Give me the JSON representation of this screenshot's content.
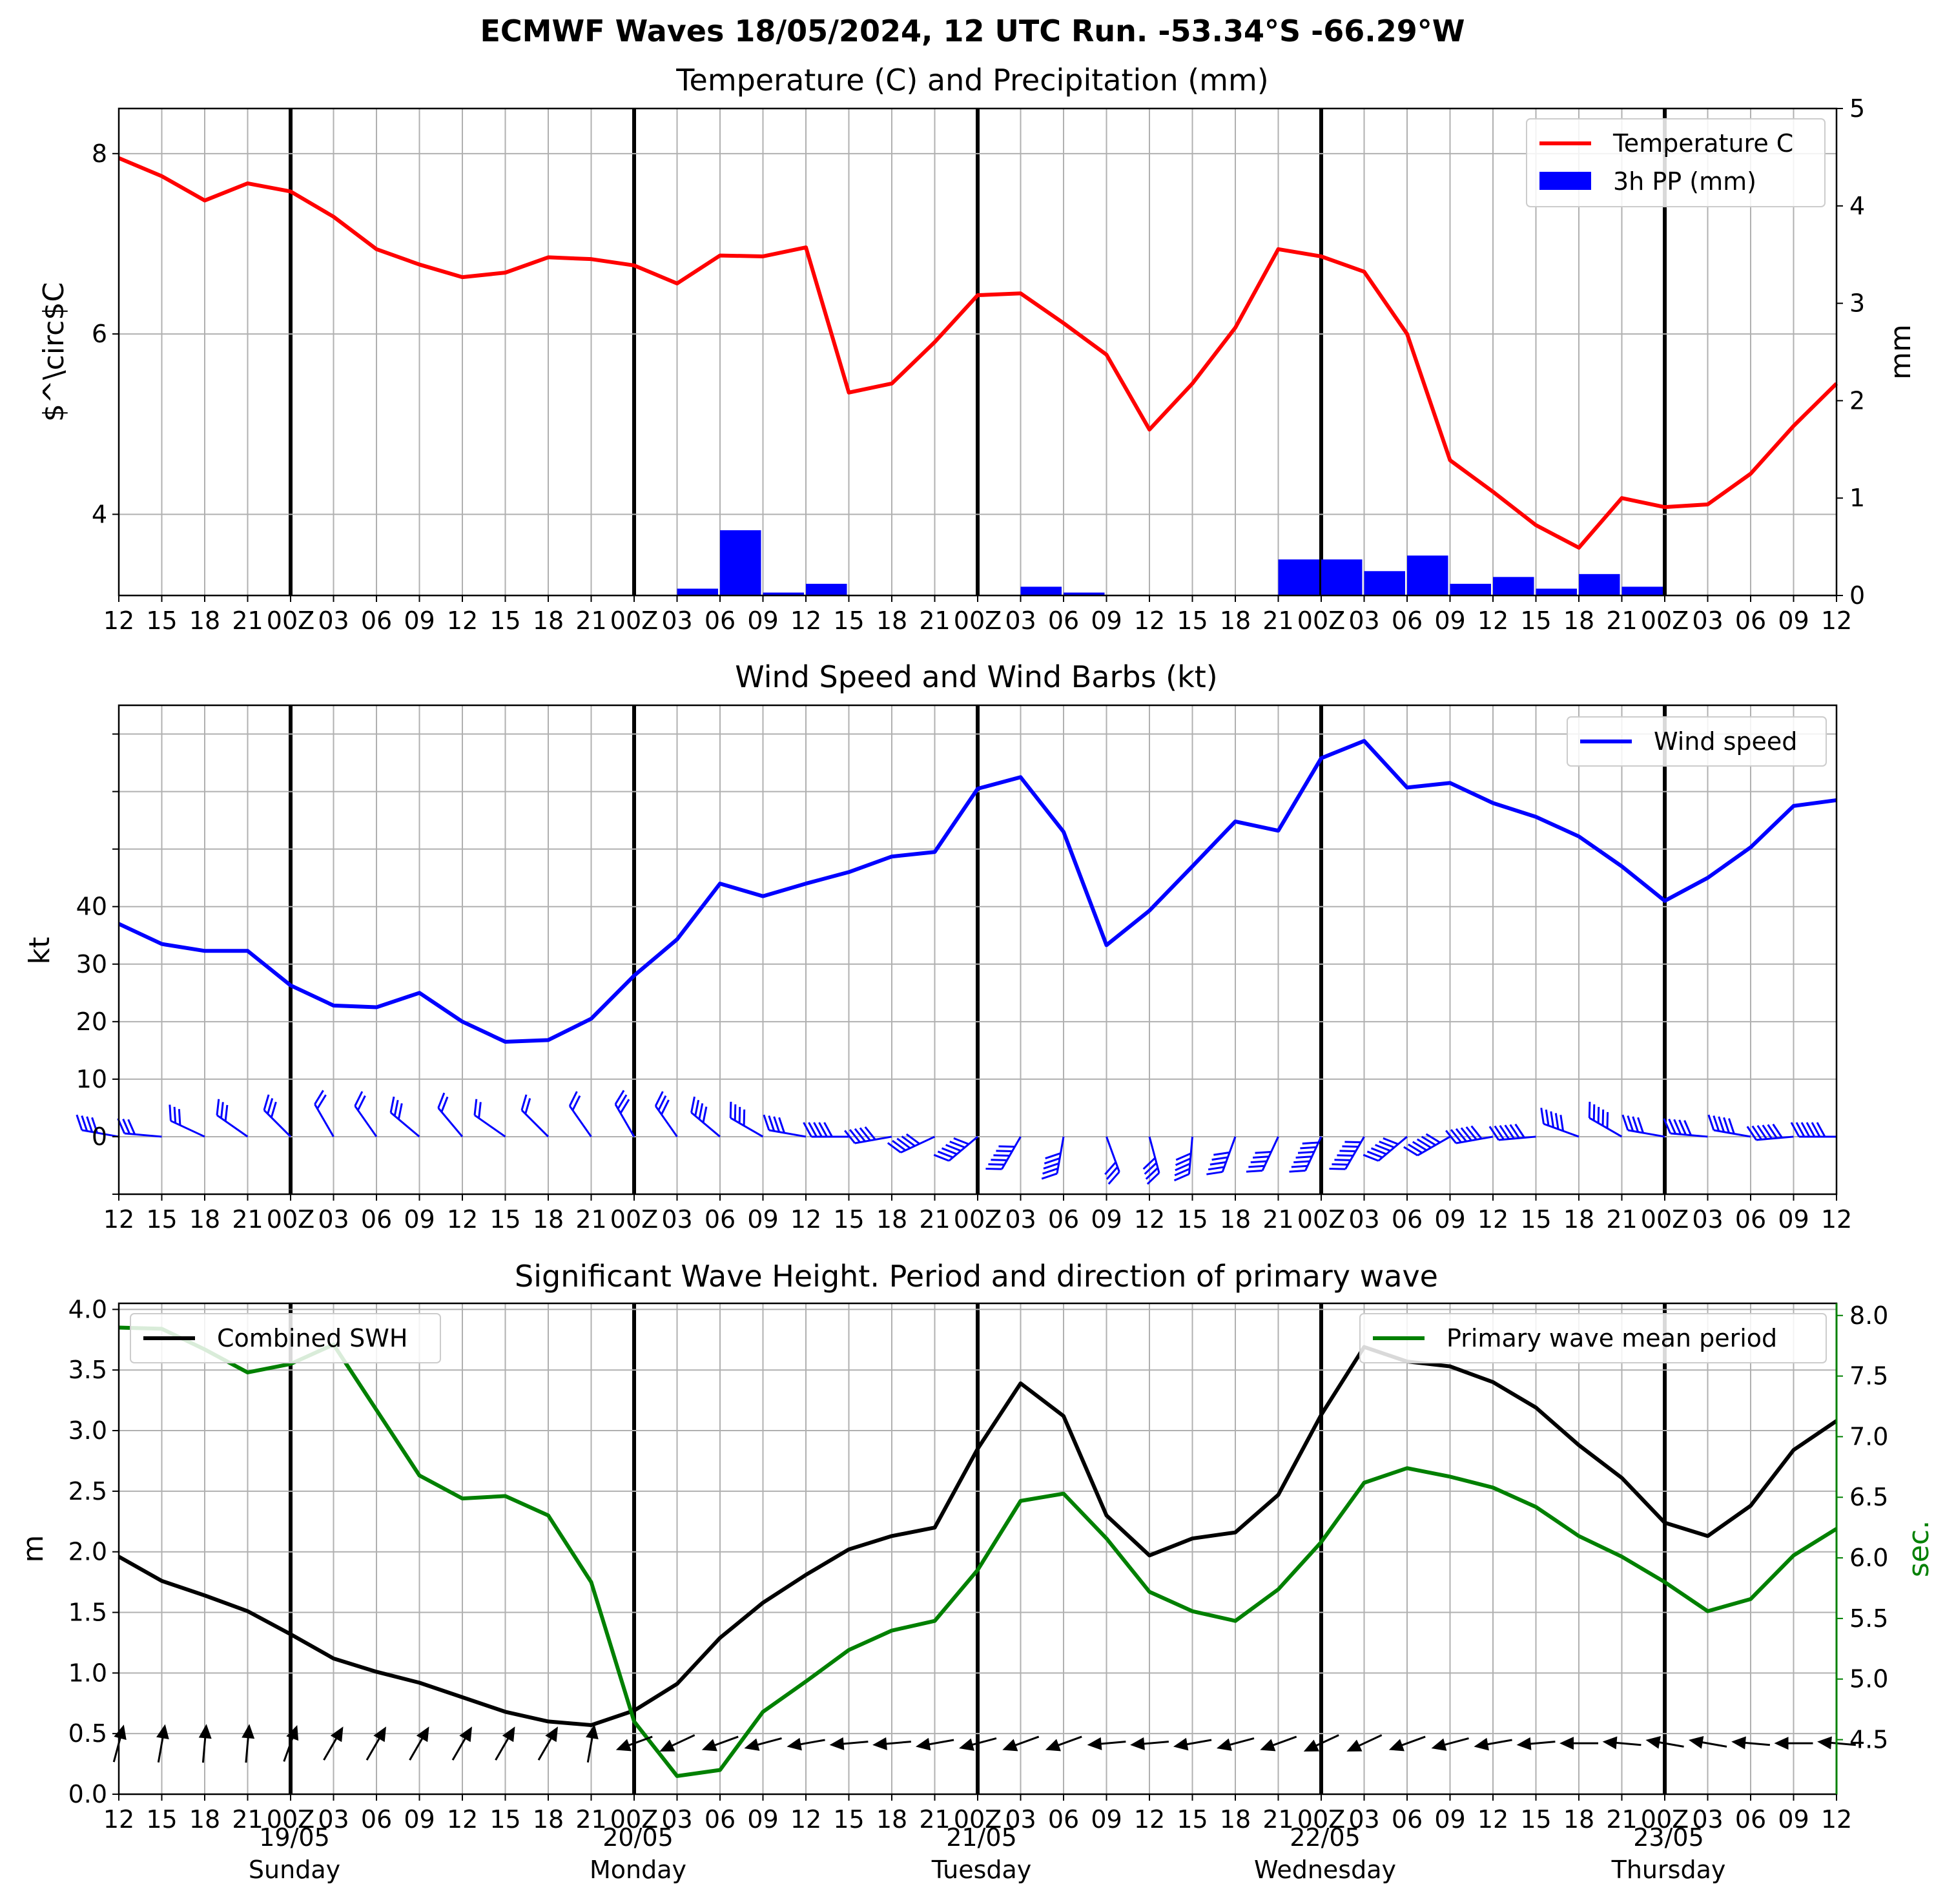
{
  "figure": {
    "title": "ECMWF Waves 18/05/2024, 12 UTC Run. -53.34°S -66.29°W",
    "x_tick_labels": [
      "12",
      "15",
      "18",
      "21",
      "00Z",
      "03",
      "06",
      "09",
      "12",
      "15",
      "18",
      "21",
      "00Z",
      "03",
      "06",
      "09",
      "12",
      "15",
      "18",
      "21",
      "00Z",
      "03",
      "06",
      "09",
      "12",
      "15",
      "18",
      "21",
      "00Z",
      "03",
      "06",
      "09",
      "12",
      "15",
      "18",
      "21",
      "00Z",
      "03",
      "06",
      "09",
      "12"
    ],
    "day_labels": [
      {
        "date": "19/05",
        "weekday": "Sunday"
      },
      {
        "date": "20/05",
        "weekday": "Monday"
      },
      {
        "date": "21/05",
        "weekday": "Tuesday"
      },
      {
        "date": "22/05",
        "weekday": "Wednesday"
      },
      {
        "date": "23/05",
        "weekday": "Thursday"
      }
    ]
  },
  "chart_data": [
    {
      "type": "line",
      "title": "Temperature (C) and Precipitation (mm)",
      "ylabel": "$^\\circ$C",
      "ylabel_right": "mm",
      "x_unit": "hours from 18/05/2024 12 UTC",
      "ylim": [
        3.1,
        8.5
      ],
      "y_ticks": [
        4,
        6,
        8
      ],
      "ylim_right": [
        0,
        5
      ],
      "y_ticks_right": [
        0,
        1,
        2,
        3,
        4,
        5
      ],
      "grid": true,
      "legend": "top-right",
      "colors": {
        "temperature": "#ff0000",
        "precipitation": "#0000ff"
      },
      "series": [
        {
          "name": "Temperature C",
          "axis": "left",
          "kind": "line",
          "values": [
            7.95,
            7.75,
            7.48,
            7.67,
            7.58,
            7.3,
            6.94,
            6.77,
            6.63,
            6.68,
            6.85,
            6.83,
            6.76,
            6.56,
            6.87,
            6.86,
            6.96,
            5.35,
            5.45,
            5.91,
            6.43,
            6.45,
            6.12,
            5.77,
            4.94,
            5.45,
            6.07,
            6.94,
            6.86,
            6.69,
            6.0,
            4.6,
            4.25,
            3.88,
            3.63,
            4.18,
            4.08,
            4.11,
            4.45,
            4.98,
            5.45
          ]
        },
        {
          "name": "3h PP (mm)",
          "axis": "right",
          "kind": "bar",
          "values": [
            0,
            0,
            0,
            0,
            0,
            0,
            0,
            0,
            0,
            0,
            0,
            0,
            0,
            0.07,
            0.67,
            0.03,
            0.12,
            0,
            0,
            0,
            0,
            0.09,
            0.03,
            0,
            0,
            0,
            0,
            0.37,
            0.37,
            0.25,
            0.41,
            0.12,
            0.19,
            0.07,
            0.22,
            0.09,
            0,
            0,
            0,
            0
          ]
        }
      ]
    },
    {
      "type": "line",
      "title": "Wind Speed and Wind Barbs (kt)",
      "ylabel": "kt",
      "x_unit": "hours from 18/05/2024 12 UTC",
      "ylim": [
        -10,
        75
      ],
      "y_tick_labels": [
        0,
        10,
        20,
        30,
        40
      ],
      "grid": true,
      "legend": "top-right",
      "colors": {
        "wind": "#0000ff",
        "barbs": "#0000ff"
      },
      "series": [
        {
          "name": "Wind speed",
          "values": [
            37,
            33.5,
            32.3,
            32.3,
            26.3,
            22.8,
            22.5,
            25,
            20,
            16.5,
            16.8,
            20.5,
            28,
            34.3,
            44,
            41.8,
            44,
            46,
            48.7,
            49.5,
            60.5,
            62.5,
            53,
            33.3,
            39.3,
            47,
            54.8,
            53.2,
            65.8,
            68.8,
            60.7,
            61.5,
            58,
            55.6,
            52.2,
            47,
            41,
            45,
            50.3,
            57.5,
            58.5
          ]
        }
      ],
      "wind_barbs": {
        "angle_deg": [
          -80,
          -85,
          -65,
          -55,
          -45,
          -30,
          -35,
          -50,
          -40,
          -55,
          -45,
          -35,
          -30,
          -35,
          -50,
          -60,
          -80,
          -90,
          -100,
          -115,
          -130,
          -150,
          -170,
          -200,
          -195,
          -175,
          -160,
          -155,
          -155,
          -150,
          -130,
          -120,
          -100,
          -95,
          -70,
          -60,
          -80,
          -85,
          -80,
          -95,
          -90
        ],
        "note": "barbs drawn at y = 0, one per 3-hour step"
      }
    },
    {
      "type": "line",
      "title": "Significant Wave Height. Period and direction of primary wave",
      "ylabel": "m",
      "ylabel_right": "sec.",
      "x_unit": "hours from 18/05/2024 12 UTC",
      "ylim": [
        0,
        4.05
      ],
      "y_ticks": [
        0.0,
        0.5,
        1.0,
        1.5,
        2.0,
        2.5,
        3.0,
        3.5,
        4.0
      ],
      "ylim_right": [
        4.05,
        8.1
      ],
      "y_ticks_right": [
        4.5,
        5.0,
        5.5,
        6.0,
        6.5,
        7.0,
        7.5,
        8.0
      ],
      "grid": true,
      "legend": [
        "top-left",
        "top-right"
      ],
      "colors": {
        "swh": "#000000",
        "period": "#008000"
      },
      "series": [
        {
          "name": "Combined SWH",
          "axis": "left",
          "values": [
            1.96,
            1.76,
            1.64,
            1.51,
            1.32,
            1.12,
            1.01,
            0.92,
            0.8,
            0.68,
            0.6,
            0.57,
            0.69,
            0.91,
            1.29,
            1.58,
            1.81,
            2.02,
            2.13,
            2.2,
            2.85,
            3.39,
            3.12,
            2.3,
            1.97,
            2.11,
            2.16,
            2.47,
            3.13,
            3.69,
            3.57,
            3.53,
            3.4,
            3.19,
            2.88,
            2.61,
            2.24,
            2.13,
            2.38,
            2.84,
            3.08
          ]
        },
        {
          "name": "Primary wave mean period",
          "axis": "right",
          "values": [
            7.9,
            7.89,
            7.72,
            7.53,
            7.6,
            7.76,
            7.22,
            6.68,
            6.49,
            6.51,
            6.35,
            5.8,
            4.65,
            4.2,
            4.25,
            4.73,
            4.98,
            5.24,
            5.4,
            5.48,
            5.9,
            6.47,
            6.53,
            6.16,
            5.72,
            5.56,
            5.48,
            5.74,
            6.13,
            6.62,
            6.74,
            6.67,
            6.58,
            6.42,
            6.18,
            6.01,
            5.8,
            5.56,
            5.66,
            6.02,
            6.24
          ]
        }
      ],
      "wave_direction_arrows": {
        "direction_deg": [
          75,
          80,
          85,
          85,
          70,
          60,
          60,
          60,
          60,
          60,
          60,
          80,
          200,
          205,
          200,
          195,
          190,
          185,
          185,
          190,
          195,
          200,
          200,
          185,
          185,
          190,
          195,
          200,
          205,
          205,
          200,
          195,
          190,
          185,
          180,
          175,
          170,
          170,
          175,
          180,
          175
        ],
        "note": "arrows drawn at y = 0.42 m, one per 3-hour step"
      }
    }
  ]
}
